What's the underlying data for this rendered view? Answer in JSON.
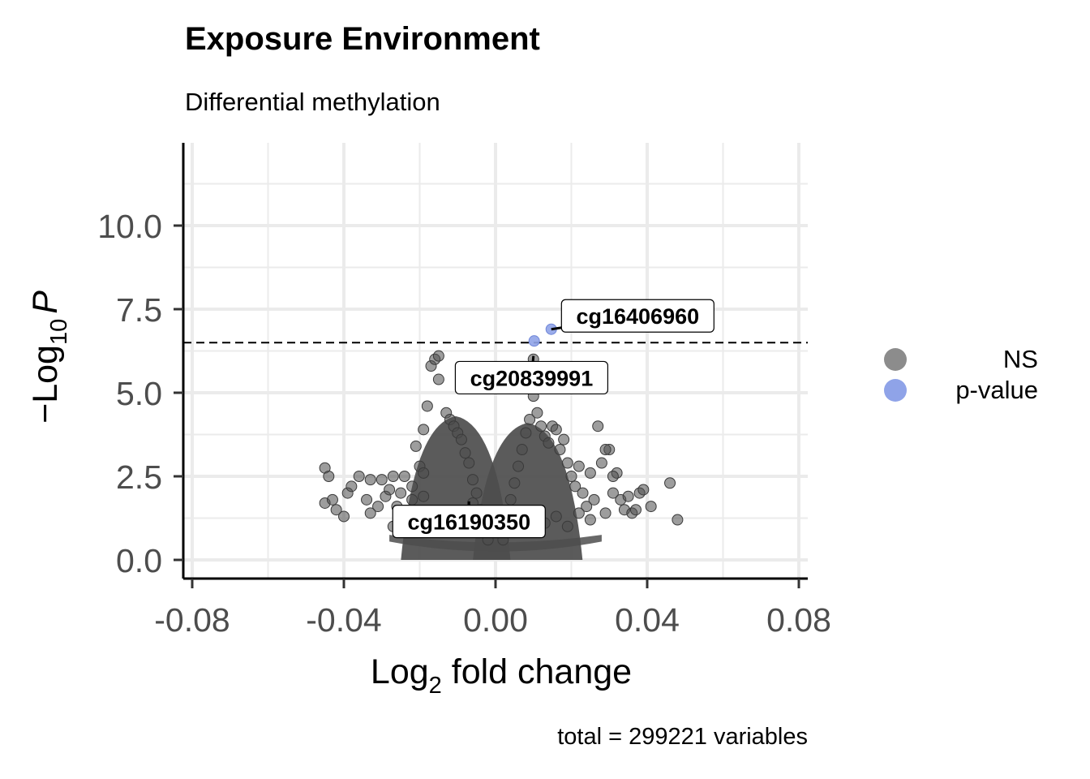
{
  "chart_data": {
    "type": "scatter",
    "title": "Exposure Environment",
    "subtitle": "Differential methylation",
    "xlabel_main": "Log",
    "xlabel_sub": "2",
    "xlabel_rest": " fold change",
    "ylabel_prefix": "−Log",
    "ylabel_sub": "10",
    "ylabel_p": "P",
    "caption": "total = 299221 variables",
    "xlim": [
      -0.08,
      0.08
    ],
    "ylim": [
      0,
      12
    ],
    "xticks": [
      -0.08,
      -0.04,
      0.0,
      0.04,
      0.08
    ],
    "xtick_labels": [
      "-0.08",
      "-0.04",
      "0.00",
      "0.04",
      "0.08"
    ],
    "yticks": [
      0.0,
      2.5,
      5.0,
      7.5,
      10.0
    ],
    "ytick_labels": [
      "0.0",
      "2.5",
      "5.0",
      "7.5",
      "10.0"
    ],
    "pvalue_cutoff_line": 6.5,
    "grid": true,
    "legend_position": "right",
    "legend": [
      {
        "label": "NS",
        "color": "#8c8c8c"
      },
      {
        "label": "p-value",
        "color": "#8fa3e8"
      }
    ],
    "series": [
      {
        "name": "NS",
        "color": "#4d4d4d",
        "points": [
          [
            -0.045,
            2.75
          ],
          [
            -0.044,
            2.5
          ],
          [
            -0.045,
            1.7
          ],
          [
            -0.042,
            1.5
          ],
          [
            -0.043,
            1.8
          ],
          [
            -0.04,
            1.3
          ],
          [
            -0.039,
            2.0
          ],
          [
            -0.038,
            2.2
          ],
          [
            -0.036,
            2.5
          ],
          [
            -0.034,
            1.8
          ],
          [
            -0.033,
            1.4
          ],
          [
            -0.031,
            1.6
          ],
          [
            -0.03,
            2.4
          ],
          [
            -0.029,
            1.9
          ],
          [
            -0.027,
            2.5
          ],
          [
            -0.026,
            1.6
          ],
          [
            -0.025,
            2.0
          ],
          [
            -0.024,
            2.5
          ],
          [
            -0.023,
            1.2
          ],
          [
            -0.022,
            2.2
          ],
          [
            -0.021,
            3.4
          ],
          [
            -0.02,
            2.8
          ],
          [
            -0.019,
            3.9
          ],
          [
            -0.018,
            4.6
          ],
          [
            -0.017,
            5.8
          ],
          [
            -0.016,
            6.0
          ],
          [
            -0.015,
            6.1
          ],
          [
            -0.015,
            5.4
          ],
          [
            -0.013,
            4.4
          ],
          [
            -0.012,
            4.2
          ],
          [
            -0.011,
            4.0
          ],
          [
            -0.01,
            3.8
          ],
          [
            -0.009,
            3.6
          ],
          [
            -0.008,
            3.2
          ],
          [
            -0.007,
            2.9
          ],
          [
            -0.006,
            2.4
          ],
          [
            -0.005,
            2.0
          ],
          [
            -0.004,
            1.5
          ],
          [
            -0.003,
            1.0
          ],
          [
            -0.002,
            0.6
          ],
          [
            0.002,
            0.6
          ],
          [
            0.003,
            1.2
          ],
          [
            0.004,
            1.8
          ],
          [
            0.005,
            2.3
          ],
          [
            0.006,
            2.8
          ],
          [
            0.007,
            3.3
          ],
          [
            0.008,
            3.8
          ],
          [
            0.009,
            4.2
          ],
          [
            0.01,
            4.9
          ],
          [
            0.01,
            6.0
          ],
          [
            0.011,
            4.4
          ],
          [
            0.012,
            4.0
          ],
          [
            0.013,
            3.7
          ],
          [
            0.014,
            3.5
          ],
          [
            0.015,
            4.0
          ],
          [
            0.016,
            3.9
          ],
          [
            0.017,
            3.3
          ],
          [
            0.018,
            3.6
          ],
          [
            0.019,
            2.9
          ],
          [
            0.02,
            2.5
          ],
          [
            0.021,
            2.2
          ],
          [
            0.022,
            2.8
          ],
          [
            0.023,
            2.0
          ],
          [
            0.024,
            1.6
          ],
          [
            0.025,
            2.6
          ],
          [
            0.026,
            1.8
          ],
          [
            0.027,
            4.0
          ],
          [
            0.028,
            2.9
          ],
          [
            0.029,
            1.4
          ],
          [
            0.03,
            3.3
          ],
          [
            0.031,
            2.0
          ],
          [
            0.032,
            2.6
          ],
          [
            0.033,
            1.8
          ],
          [
            0.034,
            1.5
          ],
          [
            0.035,
            1.9
          ],
          [
            0.036,
            1.4
          ],
          [
            0.037,
            1.5
          ],
          [
            0.038,
            2.0
          ],
          [
            0.039,
            2.1
          ],
          [
            0.041,
            1.6
          ],
          [
            0.046,
            2.3
          ],
          [
            0.048,
            1.2
          ],
          [
            0.029,
            3.3
          ],
          [
            0.031,
            2.5
          ],
          [
            0.025,
            1.2
          ],
          [
            0.022,
            1.4
          ],
          [
            0.019,
            1.0
          ],
          [
            0.016,
            1.3
          ],
          [
            0.013,
            1.1
          ],
          [
            0.011,
            0.9
          ],
          [
            -0.011,
            1.0
          ],
          [
            -0.014,
            1.2
          ],
          [
            -0.017,
            1.3
          ],
          [
            -0.019,
            1.9
          ],
          [
            -0.022,
            1.8
          ],
          [
            -0.006,
            1.7
          ],
          [
            -0.019,
            2.6
          ],
          [
            -0.027,
            1.0
          ],
          [
            -0.033,
            2.4
          ],
          [
            -0.028,
            2.1
          ]
        ]
      },
      {
        "name": "p-value",
        "color": "#8fa3e8",
        "points": [
          [
            0.0147,
            6.9
          ],
          [
            0.0102,
            6.55
          ]
        ]
      }
    ],
    "density_clusters": [
      {
        "center_x": -0.0105,
        "peak_y": 4.3,
        "width": 0.0085
      },
      {
        "center_x": 0.0085,
        "peak_y": 4.1,
        "width": 0.0085
      }
    ],
    "annotations": [
      {
        "label": "cg16406960",
        "x": 0.0147,
        "y": 6.9,
        "label_x": 0.0375,
        "label_y": 7.3
      },
      {
        "label": "cg20839991",
        "x": 0.01,
        "y": 6.1,
        "label_x": 0.0095,
        "label_y": 5.45
      },
      {
        "label": "cg16190350",
        "x": -0.007,
        "y": 1.75,
        "label_x": -0.007,
        "label_y": 1.15
      }
    ]
  }
}
